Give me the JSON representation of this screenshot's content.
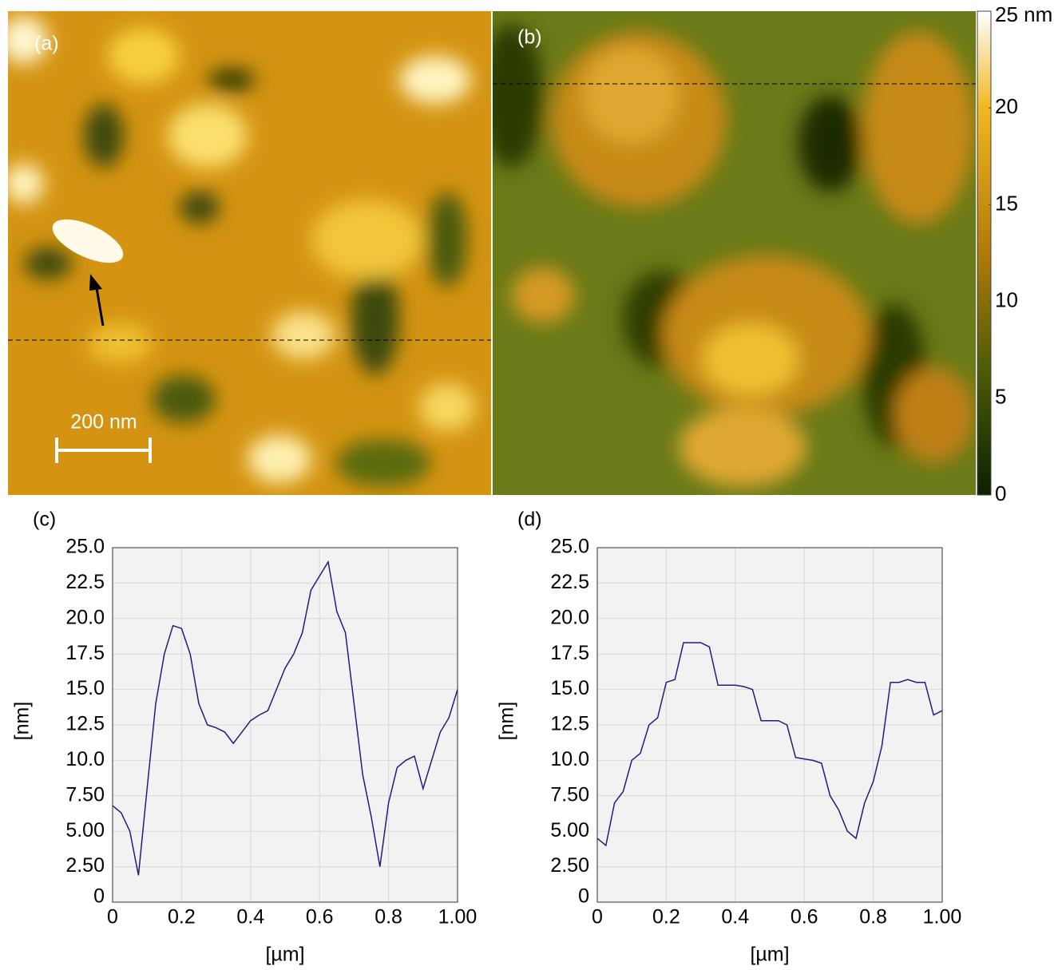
{
  "images": {
    "panels": [
      "(a)",
      "(b)"
    ],
    "scale_bar": "200 nm"
  },
  "colorbar": {
    "ylim": [
      0,
      25
    ],
    "yticks": [
      0,
      5,
      10,
      15,
      20,
      {
        "value": 25,
        "label": "25 nm"
      }
    ]
  },
  "chart_data": [
    {
      "type": "line",
      "panel": "(c)",
      "xlabel": "[µm]",
      "ylabel": "[nm]",
      "color": "#1f1f7a",
      "grid": true,
      "xlim": [
        0,
        1
      ],
      "ylim": [
        0,
        25
      ],
      "xticks": [
        0,
        0.2,
        0.4,
        0.6,
        0.8,
        {
          "value": 1,
          "label": "1.00"
        }
      ],
      "yticks": [
        0,
        {
          "value": 2.5,
          "label": "2.50"
        },
        {
          "value": 5,
          "label": "5.00"
        },
        {
          "value": 7.5,
          "label": "7.50"
        },
        {
          "value": 10,
          "label": "10.0"
        },
        12.5,
        {
          "value": 15,
          "label": "15.0"
        },
        17.5,
        {
          "value": 20,
          "label": "20.0"
        },
        22.5,
        {
          "value": 25,
          "label": "25.0"
        }
      ],
      "x": [
        0,
        0.025,
        0.05,
        0.075,
        0.1,
        0.125,
        0.15,
        0.175,
        0.2,
        0.225,
        0.25,
        0.275,
        0.3,
        0.325,
        0.35,
        0.375,
        0.4,
        0.425,
        0.45,
        0.475,
        0.5,
        0.525,
        0.55,
        0.575,
        0.6,
        0.625,
        0.65,
        0.675,
        0.7,
        0.725,
        0.75,
        0.775,
        0.8,
        0.825,
        0.85,
        0.875,
        0.9,
        0.925,
        0.95,
        0.975,
        1
      ],
      "values": [
        6.8,
        6.3,
        5,
        1.9,
        8,
        14,
        17.5,
        19.5,
        19.3,
        17.5,
        14,
        12.5,
        12.3,
        12,
        11.2,
        12,
        12.8,
        13.2,
        13.5,
        15,
        16.5,
        17.5,
        19,
        22,
        23,
        24,
        20.5,
        19,
        14,
        9,
        6,
        2.5,
        7,
        9.5,
        10,
        10.3,
        8,
        10,
        12,
        13,
        15
      ]
    },
    {
      "type": "line",
      "panel": "(d)",
      "xlabel": "[µm]",
      "ylabel": "[nm]",
      "color": "#1f1f7a",
      "grid": true,
      "xlim": [
        0,
        1
      ],
      "ylim": [
        0,
        25
      ],
      "xticks": [
        0,
        0.2,
        0.4,
        0.6,
        0.8,
        {
          "value": 1,
          "label": "1.00"
        }
      ],
      "yticks": [
        0,
        {
          "value": 2.5,
          "label": "2.50"
        },
        {
          "value": 5,
          "label": "5.00"
        },
        {
          "value": 7.5,
          "label": "7.50"
        },
        {
          "value": 10,
          "label": "10.0"
        },
        12.5,
        {
          "value": 15,
          "label": "15.0"
        },
        17.5,
        {
          "value": 20,
          "label": "20.0"
        },
        22.5,
        {
          "value": 25,
          "label": "25.0"
        }
      ],
      "x": [
        0,
        0.025,
        0.05,
        0.075,
        0.1,
        0.125,
        0.15,
        0.175,
        0.2,
        0.225,
        0.25,
        0.275,
        0.3,
        0.325,
        0.35,
        0.375,
        0.4,
        0.425,
        0.45,
        0.475,
        0.5,
        0.525,
        0.55,
        0.575,
        0.6,
        0.625,
        0.65,
        0.675,
        0.7,
        0.725,
        0.75,
        0.775,
        0.8,
        0.825,
        0.85,
        0.875,
        0.9,
        0.925,
        0.95,
        0.975,
        1
      ],
      "values": [
        4.5,
        4,
        7,
        7.8,
        10,
        10.5,
        12.5,
        13,
        15.5,
        15.7,
        18.3,
        18.3,
        18.3,
        18,
        15.3,
        15.3,
        15.3,
        15.2,
        15,
        12.8,
        12.8,
        12.8,
        12.5,
        10.2,
        10.1,
        10,
        9.8,
        7.5,
        6.5,
        5,
        4.5,
        7,
        8.5,
        11,
        15.5,
        15.5,
        15.7,
        15.5,
        15.5,
        13.2,
        13.5
      ]
    }
  ]
}
